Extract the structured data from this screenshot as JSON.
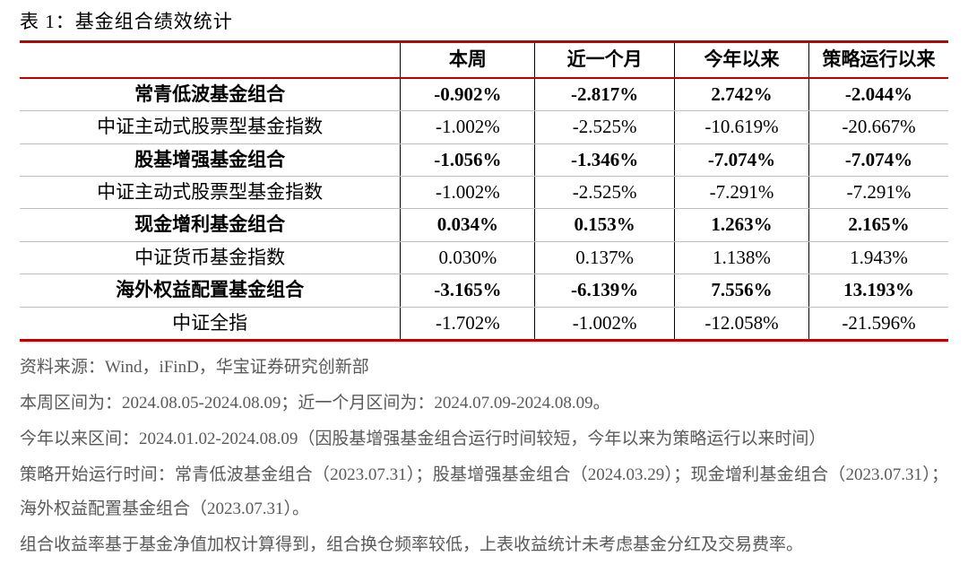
{
  "title": "表 1：基金组合绩效统计",
  "columns": [
    "",
    "本周",
    "近一个月",
    "今年以来",
    "策略运行以来"
  ],
  "rows": [
    {
      "bold": true,
      "cells": [
        "常青低波基金组合",
        "-0.902%",
        "-2.817%",
        "2.742%",
        "-2.044%"
      ]
    },
    {
      "bold": false,
      "cells": [
        "中证主动式股票型基金指数",
        "-1.002%",
        "-2.525%",
        "-10.619%",
        "-20.667%"
      ]
    },
    {
      "bold": true,
      "cells": [
        "股基增强基金组合",
        "-1.056%",
        "-1.346%",
        "-7.074%",
        "-7.074%"
      ]
    },
    {
      "bold": false,
      "cells": [
        "中证主动式股票型基金指数",
        "-1.002%",
        "-2.525%",
        "-7.291%",
        "-7.291%"
      ]
    },
    {
      "bold": true,
      "cells": [
        "现金增利基金组合",
        "0.034%",
        "0.153%",
        "1.263%",
        "2.165%"
      ]
    },
    {
      "bold": false,
      "cells": [
        "中证货币基金指数",
        "0.030%",
        "0.137%",
        "1.138%",
        "1.943%"
      ]
    },
    {
      "bold": true,
      "cells": [
        "海外权益配置基金组合",
        "-3.165%",
        "-6.139%",
        "7.556%",
        "13.193%"
      ]
    },
    {
      "bold": false,
      "cells": [
        "中证全指",
        "-1.702%",
        "-1.002%",
        "-12.058%",
        "-21.596%"
      ]
    }
  ],
  "notes": [
    "资料来源：Wind，iFinD，华宝证券研究创新部",
    "本周区间为：2024.08.05-2024.08.09；近一个月区间为：2024.07.09-2024.08.09。",
    "今年以来区间：2024.01.02-2024.08.09（因股基增强基金组合运行时间较短，今年以来为策略运行以来时间）",
    "策略开始运行时间：常青低波基金组合（2023.07.31）；股基增强基金组合（2024.03.29）；现金增利基金组合（2023.07.31）；海外权益配置基金组合（2023.07.31）。",
    "组合收益率基于基金净值加权计算得到，组合换仓频率较低，上表收益统计未考虑基金分红及交易费率。"
  ],
  "styling": {
    "border_top_color": "#c00000",
    "border_bottom_color": "#c00000",
    "header_border_color": "#c00000",
    "cell_border_color": "#000000",
    "row_divider_color": "#bfbfbf",
    "text_color": "#000000",
    "notes_color": "#595959",
    "background_color": "#ffffff",
    "title_fontsize": 21,
    "cell_fontsize": 21,
    "notes_fontsize": 19,
    "col_widths_pct": [
      41,
      14.5,
      15,
      14.5,
      15
    ]
  }
}
